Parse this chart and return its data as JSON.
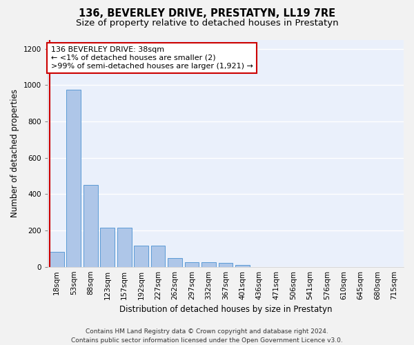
{
  "title": "136, BEVERLEY DRIVE, PRESTATYN, LL19 7RE",
  "subtitle": "Size of property relative to detached houses in Prestatyn",
  "xlabel": "Distribution of detached houses by size in Prestatyn",
  "ylabel": "Number of detached properties",
  "categories": [
    "18sqm",
    "53sqm",
    "88sqm",
    "123sqm",
    "157sqm",
    "192sqm",
    "227sqm",
    "262sqm",
    "297sqm",
    "332sqm",
    "367sqm",
    "401sqm",
    "436sqm",
    "471sqm",
    "506sqm",
    "541sqm",
    "576sqm",
    "610sqm",
    "645sqm",
    "680sqm",
    "715sqm"
  ],
  "values": [
    82,
    975,
    450,
    215,
    215,
    115,
    115,
    47,
    25,
    25,
    20,
    12,
    0,
    0,
    0,
    0,
    0,
    0,
    0,
    0,
    0
  ],
  "bar_color": "#aec6e8",
  "bar_edge_color": "#5b9bd5",
  "annotation_line1": "136 BEVERLEY DRIVE: 38sqm",
  "annotation_line2": "← <1% of detached houses are smaller (2)",
  "annotation_line3": ">99% of semi-detached houses are larger (1,921) →",
  "annotation_box_color": "#ffffff",
  "annotation_box_edge_color": "#cc0000",
  "vline_color": "#cc0000",
  "ylim": [
    0,
    1250
  ],
  "yticks": [
    0,
    200,
    400,
    600,
    800,
    1000,
    1200
  ],
  "background_color": "#eaf0fb",
  "grid_color": "#ffffff",
  "fig_background": "#f2f2f2",
  "footer_text": "Contains HM Land Registry data © Crown copyright and database right 2024.\nContains public sector information licensed under the Open Government Licence v3.0.",
  "title_fontsize": 10.5,
  "subtitle_fontsize": 9.5,
  "xlabel_fontsize": 8.5,
  "ylabel_fontsize": 8.5,
  "tick_fontsize": 7.5,
  "annotation_fontsize": 8,
  "footer_fontsize": 6.5
}
